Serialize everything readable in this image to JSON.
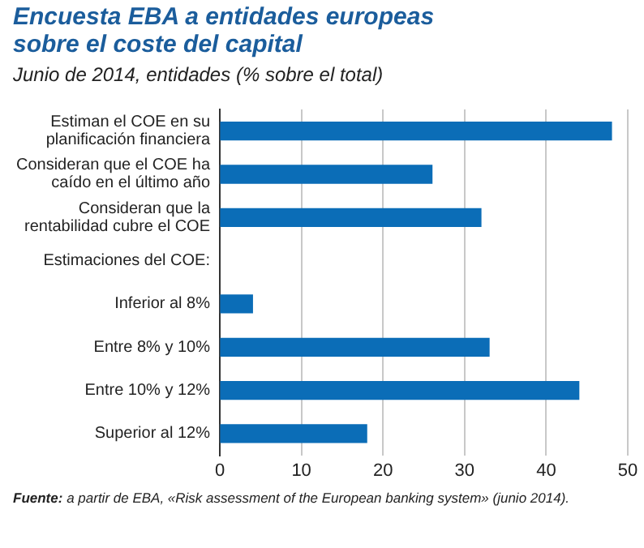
{
  "chart_data": {
    "type": "bar",
    "orientation": "horizontal",
    "title": "Encuesta EBA a entidades europeas sobre el coste del capital",
    "subtitle": "Junio de 2014, entidades (% sobre el total)",
    "categories": [
      "Estiman el COE en su planificación financiera",
      "Consideran que el COE ha caído en el último año",
      "Consideran que la rentabilidad cubre el COE",
      null,
      "Inferior al 8%",
      "Entre 8% y 10%",
      "Entre 10% y 12%",
      "Superior al 12%"
    ],
    "values": [
      48,
      26,
      32,
      null,
      4,
      33,
      44,
      18
    ],
    "color": "#0b6db7",
    "xlim": [
      0,
      50
    ],
    "xticks": [
      0,
      10,
      20,
      30,
      40,
      50
    ],
    "grid": "x",
    "legend": false,
    "annotations": [
      "Estimaciones del COE:",
      "Fuente: a partir de EBA, «Risk assessment of the European banking system» (junio 2014)."
    ]
  }
}
